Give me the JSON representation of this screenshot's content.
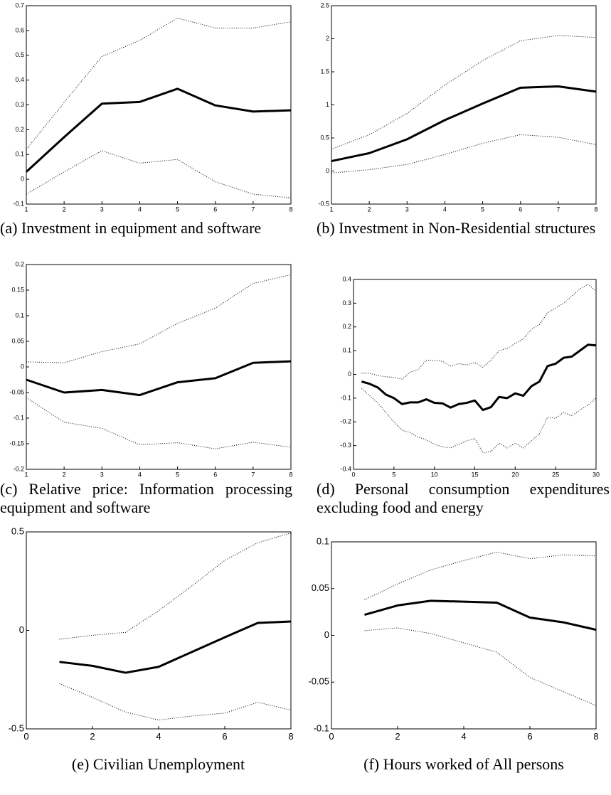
{
  "chart_data": [
    {
      "type": "line",
      "caption": "(a) Investment in equipment and software",
      "x": [
        1,
        2,
        3,
        4,
        5,
        6,
        7,
        8
      ],
      "xlim": [
        1,
        8
      ],
      "xticks": [
        1,
        2,
        3,
        4,
        5,
        6,
        7,
        8
      ],
      "ylim": [
        -0.1,
        0.7
      ],
      "yticks": [
        -0.1,
        0,
        0.1,
        0.2,
        0.3,
        0.4,
        0.5,
        0.6,
        0.7
      ],
      "series": [
        {
          "color": "#000000",
          "line_style": "solid",
          "values": [
            0.03,
            0.17,
            0.305,
            0.312,
            0.365,
            0.298,
            0.273,
            0.278
          ]
        },
        {
          "color": "#000000",
          "line_style": "dotted",
          "values": [
            0.12,
            0.31,
            0.495,
            0.56,
            0.65,
            0.61,
            0.61,
            0.635
          ]
        },
        {
          "color": "#000000",
          "line_style": "dotted",
          "values": [
            -0.06,
            0.03,
            0.115,
            0.065,
            0.08,
            -0.01,
            -0.06,
            -0.075
          ]
        }
      ]
    },
    {
      "type": "line",
      "caption": "(b) Investment in Non-Residential structures",
      "x": [
        1,
        2,
        3,
        4,
        5,
        6,
        7,
        8
      ],
      "xlim": [
        1,
        8
      ],
      "xticks": [
        1,
        2,
        3,
        4,
        5,
        6,
        7,
        8
      ],
      "ylim": [
        -0.5,
        2.5
      ],
      "yticks": [
        -0.5,
        0,
        0.5,
        1,
        1.5,
        2,
        2.5
      ],
      "series": [
        {
          "color": "#000000",
          "line_style": "solid",
          "values": [
            0.15,
            0.27,
            0.48,
            0.77,
            1.02,
            1.26,
            1.28,
            1.2
          ]
        },
        {
          "color": "#000000",
          "line_style": "dotted",
          "values": [
            0.33,
            0.55,
            0.87,
            1.3,
            1.67,
            1.97,
            2.05,
            2.02
          ]
        },
        {
          "color": "#000000",
          "line_style": "dotted",
          "values": [
            -0.03,
            0.02,
            0.1,
            0.25,
            0.42,
            0.55,
            0.51,
            0.4
          ]
        }
      ]
    },
    {
      "type": "line",
      "caption": "(c) Relative price: Information processing equipment and software",
      "x": [
        1,
        2,
        3,
        4,
        5,
        6,
        7,
        8
      ],
      "xlim": [
        1,
        8
      ],
      "xticks": [
        1,
        2,
        3,
        4,
        5,
        6,
        7,
        8
      ],
      "ylim": [
        -0.2,
        0.2
      ],
      "yticks": [
        -0.2,
        -0.15,
        -0.1,
        -0.05,
        0,
        0.05,
        0.1,
        0.15,
        0.2
      ],
      "series": [
        {
          "color": "#000000",
          "line_style": "solid",
          "values": [
            -0.025,
            -0.05,
            -0.045,
            -0.055,
            -0.03,
            -0.022,
            0.008,
            0.011
          ]
        },
        {
          "color": "#000000",
          "line_style": "dotted",
          "values": [
            0.01,
            0.008,
            0.03,
            0.045,
            0.085,
            0.115,
            0.163,
            0.18
          ]
        },
        {
          "color": "#000000",
          "line_style": "dotted",
          "values": [
            -0.06,
            -0.108,
            -0.12,
            -0.152,
            -0.148,
            -0.16,
            -0.147,
            -0.157
          ]
        }
      ]
    },
    {
      "type": "line",
      "caption": "(d) Personal consumption expenditures excluding food and energy",
      "x": [
        1,
        2,
        3,
        4,
        5,
        6,
        7,
        8,
        9,
        10,
        11,
        12,
        13,
        14,
        15,
        16,
        17,
        18,
        19,
        20,
        21,
        22,
        23,
        24,
        25,
        26,
        27,
        28,
        29,
        30
      ],
      "xlim": [
        0,
        30
      ],
      "xticks": [
        0,
        5,
        10,
        15,
        20,
        25,
        30
      ],
      "ylim": [
        -0.4,
        0.4
      ],
      "yticks": [
        -0.4,
        -0.3,
        -0.2,
        -0.1,
        0,
        0.1,
        0.2,
        0.3,
        0.4
      ],
      "series": [
        {
          "color": "#000000",
          "line_style": "solid",
          "values": [
            -0.03,
            -0.04,
            -0.055,
            -0.085,
            -0.1,
            -0.125,
            -0.118,
            -0.118,
            -0.105,
            -0.12,
            -0.122,
            -0.14,
            -0.125,
            -0.12,
            -0.11,
            -0.15,
            -0.138,
            -0.095,
            -0.1,
            -0.08,
            -0.09,
            -0.05,
            -0.03,
            0.035,
            0.045,
            0.07,
            0.075,
            0.1,
            0.125,
            0.122
          ]
        },
        {
          "color": "#000000",
          "line_style": "dotted",
          "values": [
            0.005,
            0.005,
            -0.005,
            -0.01,
            -0.012,
            -0.02,
            0.01,
            0.02,
            0.06,
            0.06,
            0.055,
            0.035,
            0.045,
            0.04,
            0.05,
            0.03,
            0.06,
            0.1,
            0.11,
            0.13,
            0.15,
            0.19,
            0.21,
            0.26,
            0.28,
            0.3,
            0.33,
            0.36,
            0.38,
            0.35
          ]
        },
        {
          "color": "#000000",
          "line_style": "dotted",
          "values": [
            -0.06,
            -0.09,
            -0.12,
            -0.16,
            -0.2,
            -0.235,
            -0.245,
            -0.265,
            -0.275,
            -0.295,
            -0.305,
            -0.31,
            -0.295,
            -0.28,
            -0.27,
            -0.33,
            -0.325,
            -0.29,
            -0.31,
            -0.29,
            -0.31,
            -0.28,
            -0.25,
            -0.18,
            -0.185,
            -0.16,
            -0.175,
            -0.15,
            -0.13,
            -0.1
          ]
        }
      ]
    },
    {
      "type": "line",
      "caption": "(e) Civilian Unemployment",
      "x": [
        1,
        2,
        3,
        4,
        5,
        6,
        7,
        8
      ],
      "xlim": [
        0,
        8
      ],
      "xticks": [
        0,
        2,
        4,
        6,
        8
      ],
      "ylim": [
        -0.5,
        0.5
      ],
      "yticks": [
        -0.5,
        0,
        0.5
      ],
      "series": [
        {
          "color": "#000000",
          "line_style": "solid",
          "values": [
            -0.16,
            -0.18,
            -0.215,
            -0.185,
            -0.11,
            -0.035,
            0.038,
            0.045
          ]
        },
        {
          "color": "#000000",
          "line_style": "dotted",
          "values": [
            -0.045,
            -0.025,
            -0.01,
            0.1,
            0.225,
            0.355,
            0.445,
            0.495
          ]
        },
        {
          "color": "#000000",
          "line_style": "dotted",
          "values": [
            -0.27,
            -0.34,
            -0.415,
            -0.455,
            -0.435,
            -0.42,
            -0.365,
            -0.405
          ]
        }
      ]
    },
    {
      "type": "line",
      "caption": "(f) Hours worked of All persons",
      "x": [
        1,
        2,
        3,
        4,
        5,
        6,
        7,
        8
      ],
      "xlim": [
        0,
        8
      ],
      "xticks": [
        0,
        2,
        4,
        6,
        8
      ],
      "ylim": [
        -0.1,
        0.1
      ],
      "yticks": [
        -0.1,
        -0.05,
        0,
        0.05,
        0.1
      ],
      "series": [
        {
          "color": "#000000",
          "line_style": "solid",
          "values": [
            0.022,
            0.032,
            0.037,
            0.036,
            0.035,
            0.019,
            0.014,
            0.006
          ]
        },
        {
          "color": "#000000",
          "line_style": "dotted",
          "values": [
            0.038,
            0.055,
            0.07,
            0.08,
            0.089,
            0.082,
            0.086,
            0.085
          ]
        },
        {
          "color": "#000000",
          "line_style": "dotted",
          "values": [
            0.005,
            0.008,
            0.002,
            -0.008,
            -0.018,
            -0.045,
            -0.06,
            -0.075
          ]
        }
      ]
    }
  ]
}
